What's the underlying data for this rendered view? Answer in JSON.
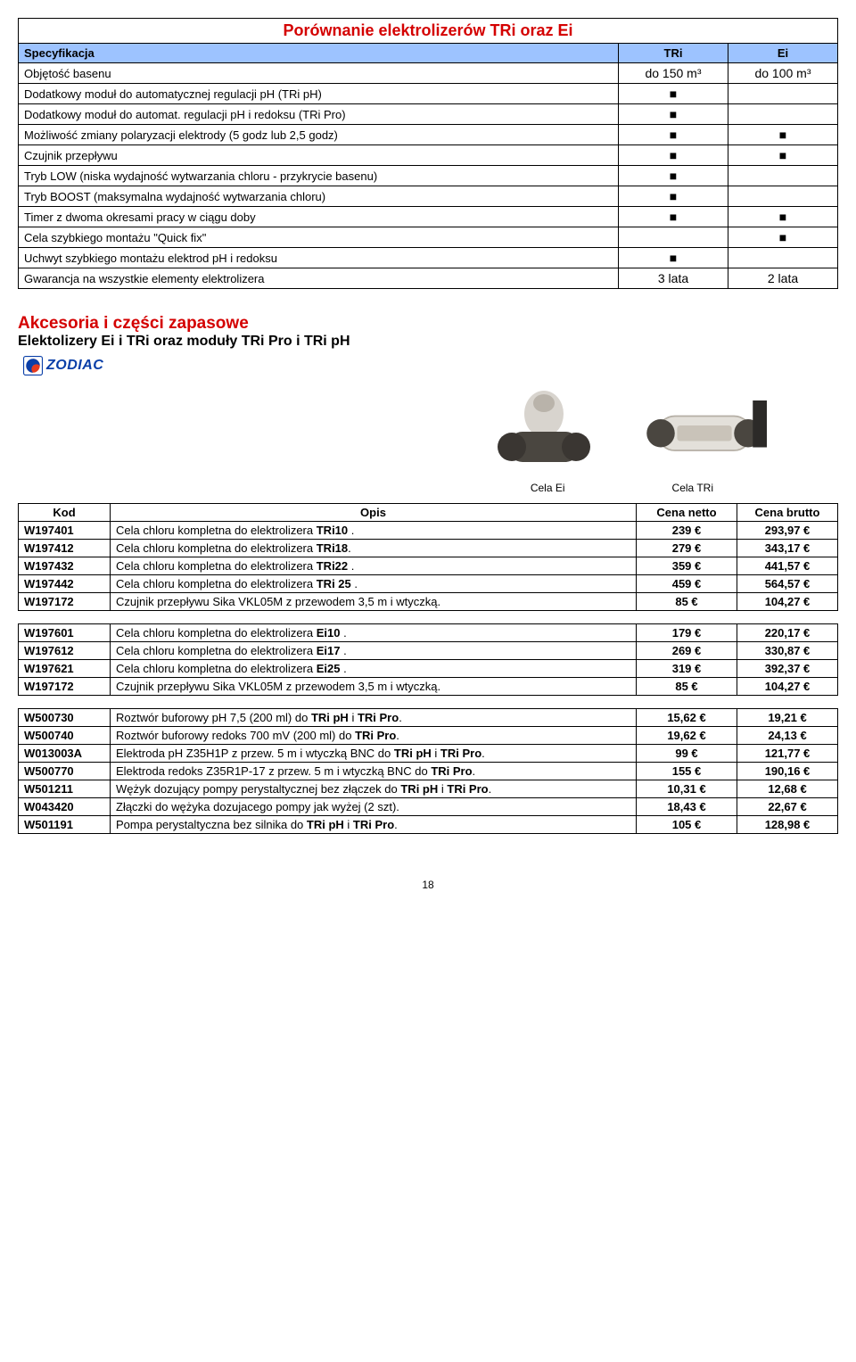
{
  "comparison": {
    "title": "Porównanie elektrolizerów TRi oraz Ei",
    "header": {
      "spec": "Specyfikacja",
      "col1": "TRi",
      "col2": "Ei"
    },
    "rows": [
      {
        "label": "Objętość basenu",
        "tri": "do 150 m³",
        "ei": "do 100 m³"
      },
      {
        "label": "Dodatkowy moduł do automatycznej regulacji pH (TRi pH)",
        "tri": "■",
        "ei": ""
      },
      {
        "label": "Dodatkowy moduł do automat. regulacji pH i redoksu (TRi Pro)",
        "tri": "■",
        "ei": ""
      },
      {
        "label": "Możliwość zmiany polaryzacji elektrody (5 godz lub 2,5 godz)",
        "tri": "■",
        "ei": "■"
      },
      {
        "label": "Czujnik przepływu",
        "tri": "■",
        "ei": "■"
      },
      {
        "label": "Tryb LOW (niska wydajność wytwarzania chloru - przykrycie basenu)",
        "tri": "■",
        "ei": ""
      },
      {
        "label": "Tryb BOOST (maksymalna wydajność wytwarzania chloru)",
        "tri": "■",
        "ei": ""
      },
      {
        "label": "Timer z dwoma okresami pracy w ciągu doby",
        "tri": "■",
        "ei": "■"
      },
      {
        "label": "Cela szybkiego montażu \"Quick fix\"",
        "tri": "",
        "ei": "■"
      },
      {
        "label": "Uchwyt szybkiego montażu elektrod pH i redoksu",
        "tri": "■",
        "ei": ""
      },
      {
        "label": "Gwarancja na wszystkie elementy elektrolizera",
        "tri": "3 lata",
        "ei": "2 lata"
      }
    ]
  },
  "accessories": {
    "title": "Akcesoria i części zapasowe",
    "subtitle": "Elektolizery Ei i TRi oraz moduły TRi Pro i TRi pH",
    "logo": "ZODIAC",
    "cap1": "Cela Ei",
    "cap2": "Cela TRi",
    "header": {
      "kod": "Kod",
      "opis": "Opis",
      "netto": "Cena netto",
      "brutto": "Cena brutto"
    },
    "groups": [
      [
        {
          "kod": "W197401",
          "opis": "Cela chloru kompletna do elektrolizera TRi10 .",
          "netto": "239 €",
          "brutto": "293,97 €"
        },
        {
          "kod": "W197412",
          "opis": "Cela chloru kompletna do elektrolizera TRi18.",
          "netto": "279 €",
          "brutto": "343,17 €"
        },
        {
          "kod": "W197432",
          "opis": "Cela chloru kompletna do elektrolizera TRi22 .",
          "netto": "359 €",
          "brutto": "441,57 €"
        },
        {
          "kod": "W197442",
          "opis": "Cela chloru kompletna do elektrolizera TRi 25 .",
          "netto": "459 €",
          "brutto": "564,57 €"
        },
        {
          "kod": "W197172",
          "opis": "Czujnik przepływu Sika VKL05M z przewodem 3,5 m i wtyczką.",
          "netto": "85 €",
          "brutto": "104,27 €"
        }
      ],
      [
        {
          "kod": "W197601",
          "opis": "Cela chloru kompletna do elektrolizera Ei10 .",
          "netto": "179 €",
          "brutto": "220,17 €"
        },
        {
          "kod": "W197612",
          "opis": "Cela chloru kompletna do elektrolizera Ei17 .",
          "netto": "269 €",
          "brutto": "330,87 €"
        },
        {
          "kod": "W197621",
          "opis": "Cela chloru kompletna do elektrolizera Ei25 .",
          "netto": "319 €",
          "brutto": "392,37 €"
        },
        {
          "kod": "W197172",
          "opis": "Czujnik przepływu Sika VKL05M z przewodem 3,5 m i wtyczką.",
          "netto": "85 €",
          "brutto": "104,27 €"
        }
      ],
      [
        {
          "kod": "W500730",
          "opis": "Roztwór buforowy pH 7,5 (200 ml) do TRi pH i TRi Pro.",
          "netto": "15,62 €",
          "brutto": "19,21 €"
        },
        {
          "kod": "W500740",
          "opis": "Roztwór buforowy redoks 700 mV (200 ml) do TRi Pro.",
          "netto": "19,62 €",
          "brutto": "24,13 €"
        },
        {
          "kod": "W013003A",
          "opis": "Elektroda pH Z35H1P z przew. 5 m i wtyczką BNC do TRi pH i TRi Pro.",
          "netto": "99 €",
          "brutto": "121,77 €"
        },
        {
          "kod": "W500770",
          "opis": "Elektroda redoks Z35R1P-17 z przew. 5 m i wtyczką BNC do TRi Pro.",
          "netto": "155 €",
          "brutto": "190,16 €"
        },
        {
          "kod": "W501211",
          "opis": "Wężyk dozujący pompy perystaltycznej  bez złączek do TRi pH i TRi Pro.",
          "netto": "10,31 €",
          "brutto": "12,68 €"
        },
        {
          "kod": "W043420",
          "opis": "Złączki do wężyka dozujacego pompy jak wyżej (2 szt).",
          "netto": "18,43 €",
          "brutto": "22,67 €"
        },
        {
          "kod": "W501191",
          "opis": "Pompa perystaltyczna bez silnika do TRi pH i TRi Pro.",
          "netto": "105 €",
          "brutto": "128,98 €"
        }
      ]
    ]
  },
  "pagefoot": "18"
}
